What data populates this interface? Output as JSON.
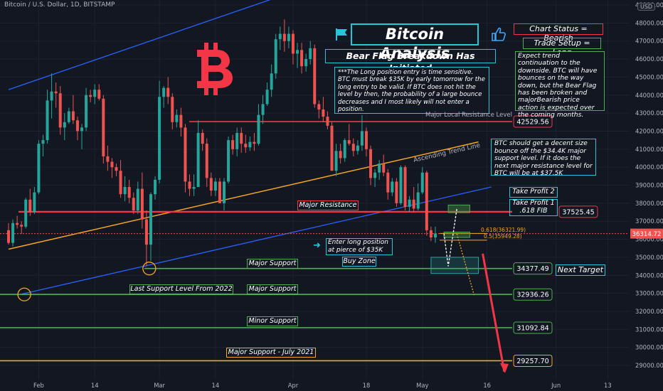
{
  "header": {
    "symbol_line": "Bitcoin / U.S. Dollar, 1D, BITSTAMP",
    "currency_badge": "USD"
  },
  "colors": {
    "background": "#131722",
    "up_candle": "#26a69a",
    "down_candle": "#ef5350",
    "resistance": "#f23645",
    "support": "#4caf50",
    "trend_line": "#f5a623",
    "channel": "#2962ff",
    "accent": "#26c6da",
    "logo": "#f23645"
  },
  "annotations": {
    "title": "Bitcoin Analysis",
    "subtitle": "Bear Flag Breakdown Has Initiated",
    "chart_status": "Chart Status = Bearish",
    "trade_setup": "Trade Setup = Long",
    "expectation": "Expect trend continuation to the downside. BTC will have bounces on the way down, but the Bear Flag has been broken and majorBearish price action is expected over the coming months.",
    "note": "***The Long position entry is time sensitive. BTC must break $35K by early tomorrow for the long entry to be valid. If BTC does not hit the level by then, the probability of a large bounce decreases and I most likely will not enter a position.",
    "bounce_note": "BTC should get a decent size bounce off the $34.4K major support level. If it does the next major resistance level for BTC will be at $37.5K",
    "major_local_resistance": "Major Local Resistance Level",
    "ascending_trend_line": "Ascending Trend Line",
    "major_resistance": "Major Resistance",
    "take_profit_2": "Take Profit 2",
    "take_profit_1": "Take Profit 1",
    "take_profit_1_sub": ".618 FIB",
    "fib_618": "0.618(36321.99)",
    "fib_05": "0.5(35949.28)",
    "enter_long": "Enter long position at pierce of $35K",
    "buy_zone": "Buy Zone",
    "major_support_1": "Major Support",
    "next_target": "Next Target",
    "last_support_2022": "Last Support Level From 2022",
    "major_support_2": "Major Support",
    "minor_support": "Minor Support",
    "major_support_july": "Major Support - July 2021"
  },
  "chart_data": {
    "type": "candlestick",
    "y_axis": {
      "min": 28400,
      "max": 49600,
      "ticks": [
        29000,
        30000,
        31000,
        32000,
        33000,
        34000,
        35000,
        36000,
        37000,
        38000,
        39000,
        40000,
        41000,
        42000,
        43000,
        44000,
        45000,
        46000,
        47000,
        48000,
        49000
      ],
      "tick_labels": [
        "29000.00",
        "30000.00",
        "31000.00",
        "32000.00",
        "33000.00",
        "34000.00",
        "35000.00",
        "36000.00",
        "37000.00",
        "38000.00",
        "39000.00",
        "40000.00",
        "41000.00",
        "42000.00",
        "43000.00",
        "44000.00",
        "45000.00",
        "46000.00",
        "47000.00",
        "48000.00",
        "49000.00"
      ]
    },
    "x_axis": {
      "ticks": [
        {
          "label": "Feb",
          "day": 7
        },
        {
          "label": "14",
          "day": 20
        },
        {
          "label": "Mar",
          "day": 35
        },
        {
          "label": "14",
          "day": 48
        },
        {
          "label": "Apr",
          "day": 66
        },
        {
          "label": "18",
          "day": 83
        },
        {
          "label": "May",
          "day": 96
        },
        {
          "label": "16",
          "day": 111
        },
        {
          "label": "Jun",
          "day": 127
        },
        {
          "label": "13",
          "day": 139
        }
      ]
    },
    "levels": [
      {
        "name": "Major Local Resistance",
        "price": 42529.56,
        "label": "42529.56",
        "kind": "resistance"
      },
      {
        "name": "Major Resistance",
        "price": 37525.45,
        "label": "37525.45",
        "kind": "resistance"
      },
      {
        "name": "Major Support",
        "price": 34377.49,
        "label": "34377.49",
        "kind": "support"
      },
      {
        "name": "Major Support",
        "price": 32936.26,
        "label": "32936.26",
        "kind": "support"
      },
      {
        "name": "Minor Support",
        "price": 31092.84,
        "label": "31092.84",
        "kind": "support"
      },
      {
        "name": "Major Support - July 2021",
        "price": 29257.7,
        "label": "29257.70",
        "kind": "support_orange"
      }
    ],
    "last_price": {
      "price": 36314.72,
      "label": "36314.72"
    },
    "fib_levels": [
      {
        "ratio": 0.618,
        "price": 36321.99
      },
      {
        "ratio": 0.5,
        "price": 35949.28
      }
    ],
    "zones": [
      {
        "name": "Take Profit 2",
        "from_day": 102,
        "to_day": 107,
        "low": 37480,
        "high": 37900
      },
      {
        "name": "Take Profit 1",
        "from_day": 101,
        "to_day": 107,
        "low": 36100,
        "high": 36400
      },
      {
        "name": "Buy Zone",
        "from_day": 98,
        "to_day": 109,
        "low": 34100,
        "high": 35000
      }
    ],
    "trend_lines": [
      {
        "name": "Ascending Trend Line",
        "from": {
          "day": 0,
          "price": 35450
        },
        "to": {
          "day": 109,
          "price": 41400
        }
      },
      {
        "name": "Channel Upper",
        "from": {
          "day": 0,
          "price": 44300
        },
        "to": {
          "day": 79,
          "price": 50800
        }
      },
      {
        "name": "Channel Lower",
        "from": {
          "day": 2,
          "price": 32900
        },
        "to": {
          "day": 112,
          "price": 38900
        }
      }
    ],
    "projections": [
      {
        "name": "Bounce Path",
        "points": [
          {
            "day": 101,
            "price": 36320
          },
          {
            "day": 102,
            "price": 34500
          },
          {
            "day": 104,
            "price": 37700
          }
        ]
      },
      {
        "name": "Dotted Drop",
        "points": [
          {
            "day": 104,
            "price": 36300
          },
          {
            "day": 108,
            "price": 32900
          }
        ]
      },
      {
        "name": "Long Term Drop",
        "points": [
          {
            "day": 110,
            "price": 35200
          },
          {
            "day": 115,
            "price": 28650
          }
        ]
      }
    ],
    "candles": [
      [
        36500,
        36900,
        35700,
        35800
      ],
      [
        35800,
        37100,
        35600,
        36900
      ],
      [
        36900,
        37300,
        36600,
        36800
      ],
      [
        36800,
        37000,
        36300,
        36700
      ],
      [
        36700,
        38300,
        36600,
        38200
      ],
      [
        38200,
        38800,
        37300,
        37500
      ],
      [
        37500,
        38900,
        37400,
        38600
      ],
      [
        38600,
        41500,
        38500,
        41300
      ],
      [
        41300,
        41800,
        40600,
        41500
      ],
      [
        41500,
        44300,
        41300,
        43700
      ],
      [
        43700,
        45200,
        42700,
        44200
      ],
      [
        44200,
        44700,
        43300,
        44100
      ],
      [
        44100,
        44500,
        41800,
        42200
      ],
      [
        42200,
        43000,
        41500,
        42500
      ],
      [
        42500,
        43300,
        42400,
        43100
      ],
      [
        43100,
        44000,
        42400,
        42600
      ],
      [
        42600,
        42800,
        41500,
        42000
      ],
      [
        42000,
        42400,
        41000,
        42200
      ],
      [
        42200,
        44400,
        42000,
        44000
      ],
      [
        44000,
        44300,
        43600,
        43900
      ],
      [
        43900,
        44600,
        43500,
        44300
      ],
      [
        44300,
        44600,
        43700,
        43800
      ],
      [
        43800,
        44000,
        40200,
        40600
      ],
      [
        40600,
        41200,
        39800,
        40300
      ],
      [
        40300,
        40500,
        39400,
        40000
      ],
      [
        40000,
        40200,
        39500,
        39800
      ],
      [
        39800,
        40400,
        38300,
        38500
      ],
      [
        38500,
        39500,
        38100,
        38900
      ],
      [
        38900,
        39300,
        38000,
        38300
      ],
      [
        38300,
        38600,
        37400,
        37600
      ],
      [
        37600,
        39200,
        37400,
        38800
      ],
      [
        38800,
        39700,
        36600,
        37100
      ],
      [
        37100,
        37600,
        34500,
        35700
      ],
      [
        35700,
        38600,
        34800,
        38500
      ],
      [
        38500,
        39500,
        38200,
        39300
      ],
      [
        39300,
        44800,
        39100,
        43900
      ],
      [
        43900,
        44500,
        43300,
        44400
      ],
      [
        44400,
        45000,
        43500,
        43900
      ],
      [
        43900,
        44100,
        42100,
        42500
      ],
      [
        42500,
        43200,
        42200,
        42900
      ],
      [
        42900,
        43300,
        41700,
        42200
      ],
      [
        42200,
        42400,
        38600,
        39200
      ],
      [
        39200,
        39600,
        38400,
        38800
      ],
      [
        38800,
        39600,
        38400,
        38900
      ],
      [
        38900,
        42600,
        38900,
        41900
      ],
      [
        41900,
        42100,
        40900,
        41300
      ],
      [
        41300,
        41600,
        38900,
        39400
      ],
      [
        39400,
        39700,
        38400,
        38700
      ],
      [
        38700,
        39400,
        38400,
        39200
      ],
      [
        39200,
        39400,
        38000,
        38000
      ],
      [
        38000,
        39400,
        37600,
        39200
      ],
      [
        39200,
        41700,
        39100,
        41500
      ],
      [
        41500,
        41800,
        40700,
        41000
      ],
      [
        41000,
        42200,
        40600,
        41900
      ],
      [
        41900,
        42200,
        40800,
        41300
      ],
      [
        41300,
        41800,
        40800,
        41100
      ],
      [
        41100,
        41700,
        40900,
        41400
      ],
      [
        41400,
        41900,
        40900,
        41300
      ],
      [
        41300,
        43500,
        41200,
        42900
      ],
      [
        42900,
        44000,
        42400,
        43500
      ],
      [
        43500,
        44700,
        43400,
        44300
      ],
      [
        44300,
        45700,
        43900,
        45200
      ],
      [
        45200,
        47400,
        44900,
        47100
      ],
      [
        47100,
        47800,
        46500,
        47400
      ],
      [
        47400,
        48200,
        46400,
        47000
      ],
      [
        47000,
        47800,
        46600,
        47400
      ],
      [
        47400,
        47600,
        45700,
        46300
      ],
      [
        46300,
        46900,
        45500,
        46500
      ],
      [
        46500,
        46900,
        45200,
        45600
      ],
      [
        45600,
        46300,
        45300,
        46000
      ],
      [
        46000,
        47000,
        45700,
        46600
      ],
      [
        46600,
        46800,
        43300,
        43500
      ],
      [
        43500,
        43700,
        42700,
        43200
      ],
      [
        43200,
        43900,
        42500,
        42800
      ],
      [
        42800,
        43100,
        42100,
        42300
      ],
      [
        42300,
        42500,
        39800,
        39800
      ],
      [
        39800,
        41300,
        39500,
        40900
      ],
      [
        40900,
        41300,
        40200,
        40500
      ],
      [
        40500,
        41600,
        40300,
        41500
      ],
      [
        41500,
        42400,
        41200,
        41300
      ],
      [
        41300,
        41600,
        40600,
        40900
      ],
      [
        40900,
        41500,
        40700,
        41200
      ],
      [
        41200,
        42900,
        40900,
        42000
      ],
      [
        42000,
        42200,
        40600,
        41000
      ],
      [
        41000,
        41200,
        39000,
        39400
      ],
      [
        39400,
        39900,
        38900,
        39700
      ],
      [
        39700,
        40400,
        39300,
        40200
      ],
      [
        40200,
        40700,
        39500,
        39700
      ],
      [
        39700,
        39900,
        38200,
        38600
      ],
      [
        38600,
        39400,
        38400,
        39200
      ],
      [
        39200,
        39400,
        37800,
        38000
      ],
      [
        38000,
        40100,
        37900,
        40000
      ],
      [
        40000,
        40100,
        37600,
        37800
      ],
      [
        37800,
        38400,
        37500,
        38200
      ],
      [
        38200,
        38900,
        37500,
        37700
      ],
      [
        37700,
        39100,
        37600,
        38600
      ],
      [
        38600,
        40000,
        38500,
        39700
      ],
      [
        39700,
        39800,
        36200,
        36500
      ],
      [
        36500,
        36700,
        35900,
        36100
      ],
      [
        36100,
        36700,
        35800,
        36315
      ]
    ]
  }
}
